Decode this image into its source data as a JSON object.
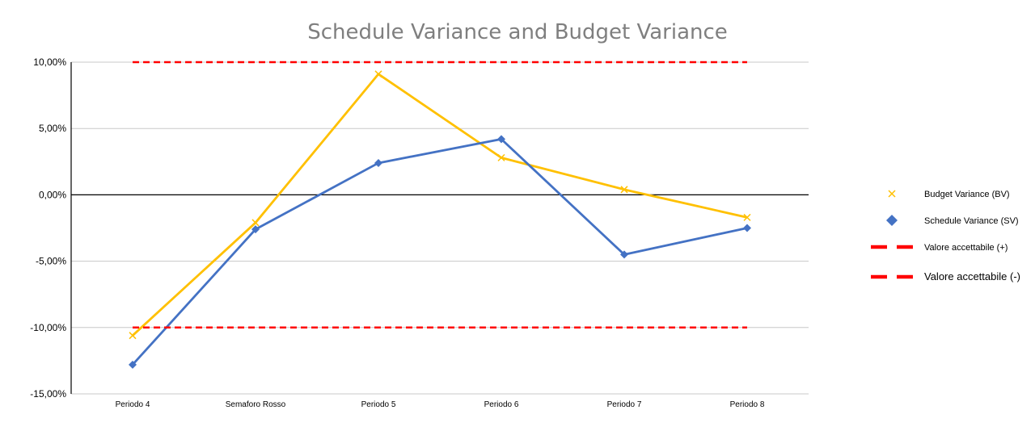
{
  "chart_data": {
    "type": "line",
    "title": "Schedule Variance and Budget Variance",
    "categories": [
      "Periodo 4",
      "Semaforo Rosso",
      "Periodo 5",
      "Periodo 6",
      "Periodo 7",
      "Periodo 8"
    ],
    "ylim": [
      -15,
      10
    ],
    "yticks": [
      10,
      5,
      0,
      -5,
      -10,
      -15
    ],
    "ytick_labels": [
      "10,00%",
      "5,00%",
      "0,00%",
      "-5,00%",
      "-10,00%",
      "-15,00%"
    ],
    "grid": true,
    "legend_position": "right",
    "series": [
      {
        "name": "Budget Variance (BV)",
        "values": [
          -10.6,
          -2.1,
          9.1,
          2.8,
          0.4,
          -1.7
        ],
        "color": "#FFC000",
        "marker": "x-icon"
      },
      {
        "name": "Schedule Variance (SV)",
        "values": [
          -12.8,
          -2.6,
          2.4,
          4.2,
          -4.5,
          -2.5
        ],
        "color": "#4472C4",
        "marker": "diamond-icon"
      },
      {
        "name": "Valore accettabile (+)",
        "values": [
          10,
          10,
          10,
          10,
          10,
          10
        ],
        "color": "#FF0000",
        "style": "dashed"
      },
      {
        "name": "Valore accettabile (-)",
        "values": [
          -10,
          -10,
          -10,
          -10,
          -10,
          -10
        ],
        "color": "#FF0000",
        "style": "dashed"
      }
    ]
  }
}
